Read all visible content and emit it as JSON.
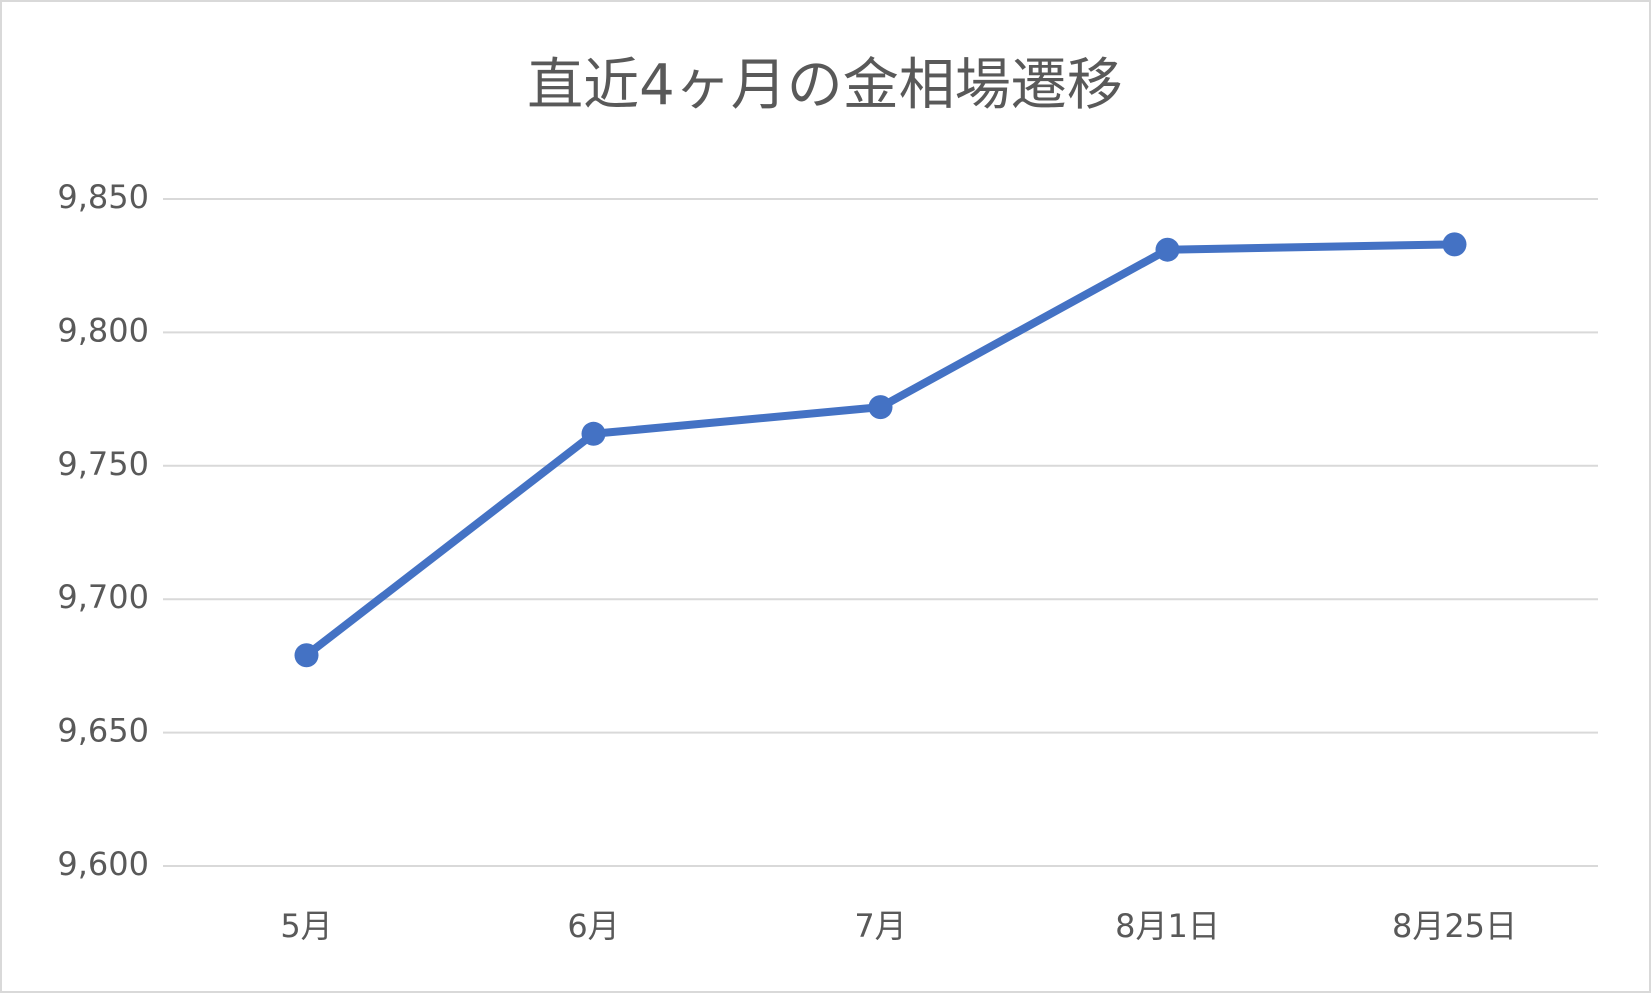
{
  "chart_data": {
    "type": "line",
    "title": "直近4ヶ月の金相場遷移",
    "categories": [
      "5月",
      "6月",
      "7月",
      "8月1日",
      "8月25日"
    ],
    "series": [
      {
        "name": "金相場",
        "color": "#4472c4",
        "values": [
          9679,
          9762,
          9772,
          9831,
          9833
        ]
      }
    ],
    "ylim": [
      9600,
      9850
    ],
    "yticks": [
      {
        "value": 9600,
        "label": "9,600"
      },
      {
        "value": 9650,
        "label": "9,650"
      },
      {
        "value": 9700,
        "label": "9,700"
      },
      {
        "value": 9750,
        "label": "9,750"
      },
      {
        "value": 9800,
        "label": "9,800"
      },
      {
        "value": 9850,
        "label": "9,850"
      }
    ],
    "grid": true
  }
}
